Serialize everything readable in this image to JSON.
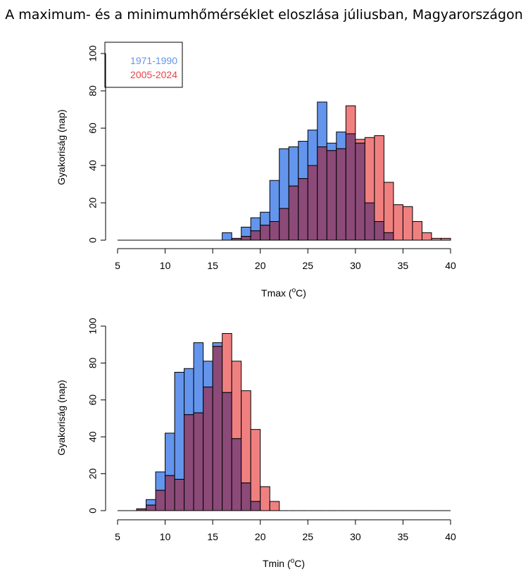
{
  "title": "A maximum- és a minimumhőmérséklet eloszlása júliusban, Magyarországon",
  "colors": {
    "period1": "#6495ED",
    "period2": "#F08080",
    "overlap": "#8B4A78",
    "legend1": "#6495ED",
    "legend2": "#E8434A"
  },
  "legend": [
    "1971-1990",
    "2005-2024"
  ],
  "chart_data": [
    {
      "type": "bar",
      "subtype": "overlapping-histogram",
      "xlabel": "Tmax (",
      "xlabel_sup": "o",
      "xlabel_unit": "C)",
      "ylabel": "Gyakoriság (nap)",
      "xlim": [
        5,
        40
      ],
      "ylim": [
        0,
        100
      ],
      "xticks": [
        5,
        10,
        15,
        20,
        25,
        30,
        35,
        40
      ],
      "yticks": [
        0,
        20,
        40,
        60,
        80,
        100
      ],
      "bin_width": 1,
      "bin_start": 5,
      "series": [
        {
          "name": "1971-1990",
          "values": [
            0,
            0,
            0,
            0,
            0,
            0,
            0,
            0,
            0,
            0,
            0,
            4,
            1,
            7,
            12,
            15,
            32,
            49,
            50,
            53,
            59,
            74,
            52,
            58,
            57,
            52,
            20,
            10,
            4,
            0,
            0,
            0,
            0,
            0,
            0
          ]
        },
        {
          "name": "2005-2024",
          "values": [
            0,
            0,
            0,
            0,
            0,
            0,
            0,
            0,
            0,
            0,
            0,
            0,
            1,
            2,
            5,
            8,
            10,
            17,
            29,
            33,
            40,
            50,
            48,
            49,
            72,
            54,
            55,
            56,
            31,
            19,
            18,
            10,
            4,
            1,
            1
          ]
        }
      ]
    },
    {
      "type": "bar",
      "subtype": "overlapping-histogram",
      "xlabel": "Tmin (",
      "xlabel_sup": "o",
      "xlabel_unit": "C)",
      "ylabel": "Gyakoriság (nap)",
      "xlim": [
        5,
        40
      ],
      "ylim": [
        0,
        100
      ],
      "xticks": [
        5,
        10,
        15,
        20,
        25,
        30,
        35,
        40
      ],
      "yticks": [
        0,
        20,
        40,
        60,
        80,
        100
      ],
      "bin_width": 1,
      "bin_start": 5,
      "series": [
        {
          "name": "1971-1990",
          "values": [
            0,
            0,
            1,
            6,
            21,
            42,
            75,
            77,
            91,
            81,
            91,
            64,
            39,
            15,
            5,
            0,
            0,
            0,
            0,
            0,
            0,
            0,
            0,
            0,
            0,
            0,
            0,
            0,
            0,
            0,
            0,
            0,
            0,
            0,
            0
          ]
        },
        {
          "name": "2005-2024",
          "values": [
            0,
            0,
            1,
            3,
            11,
            19,
            17,
            52,
            53,
            67,
            89,
            96,
            81,
            65,
            44,
            13,
            5,
            0,
            0,
            0,
            0,
            0,
            0,
            0,
            0,
            0,
            0,
            0,
            0,
            0,
            0,
            0,
            0,
            0,
            0
          ]
        }
      ]
    }
  ]
}
